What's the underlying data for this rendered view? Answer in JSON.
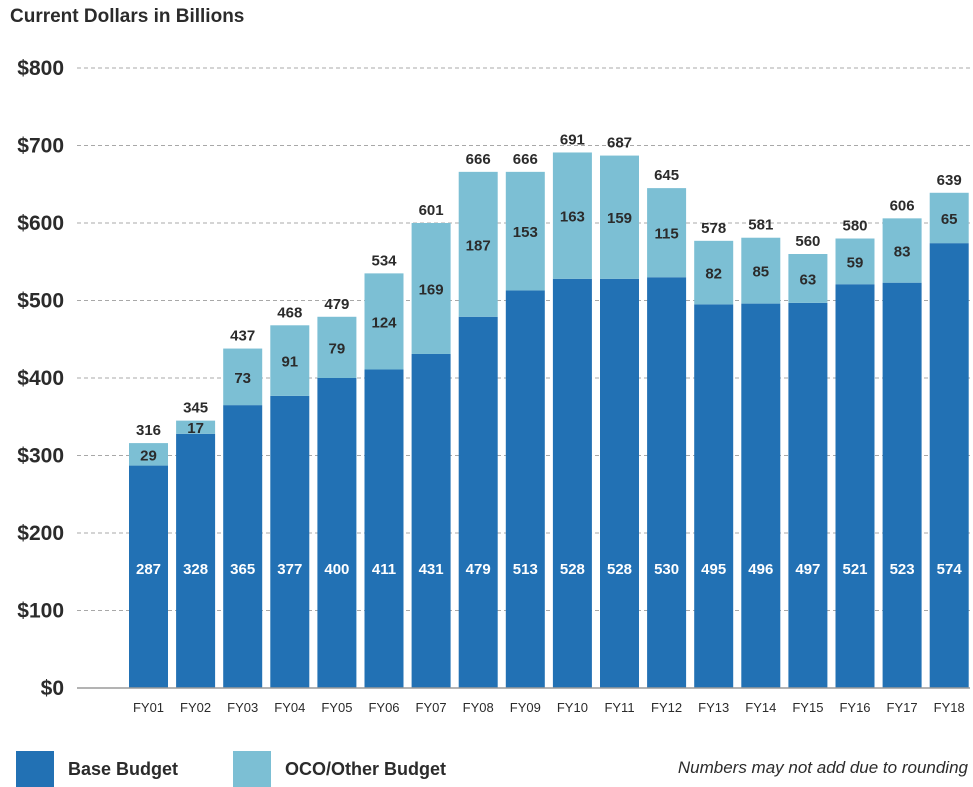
{
  "chart_data": {
    "type": "bar",
    "stacked": true,
    "title": "Current Dollars in Billions",
    "categories": [
      "FY01",
      "FY02",
      "FY03",
      "FY04",
      "FY05",
      "FY06",
      "FY07",
      "FY08",
      "FY09",
      "FY10",
      "FY11",
      "FY12",
      "FY13",
      "FY14",
      "FY15",
      "FY16",
      "FY17",
      "FY18"
    ],
    "series": [
      {
        "name": "Base Budget",
        "color": "#2271b4",
        "values": [
          287,
          328,
          365,
          377,
          400,
          411,
          431,
          479,
          513,
          528,
          528,
          530,
          495,
          496,
          497,
          521,
          523,
          574
        ]
      },
      {
        "name": "OCO/Other Budget",
        "color": "#7cbfd4",
        "values": [
          29,
          17,
          73,
          91,
          79,
          124,
          169,
          187,
          153,
          163,
          159,
          115,
          82,
          85,
          63,
          59,
          83,
          65
        ]
      }
    ],
    "totals": [
      316,
      345,
      437,
      468,
      479,
      534,
      601,
      666,
      666,
      691,
      687,
      645,
      578,
      581,
      560,
      580,
      606,
      639
    ],
    "y_ticks": [
      "$0",
      "$100",
      "$200",
      "$300",
      "$400",
      "$500",
      "$600",
      "$700",
      "$800"
    ],
    "ylim": [
      0,
      800
    ],
    "grid": true,
    "legend_position": "bottom",
    "note": "Numbers may not add due to rounding"
  }
}
